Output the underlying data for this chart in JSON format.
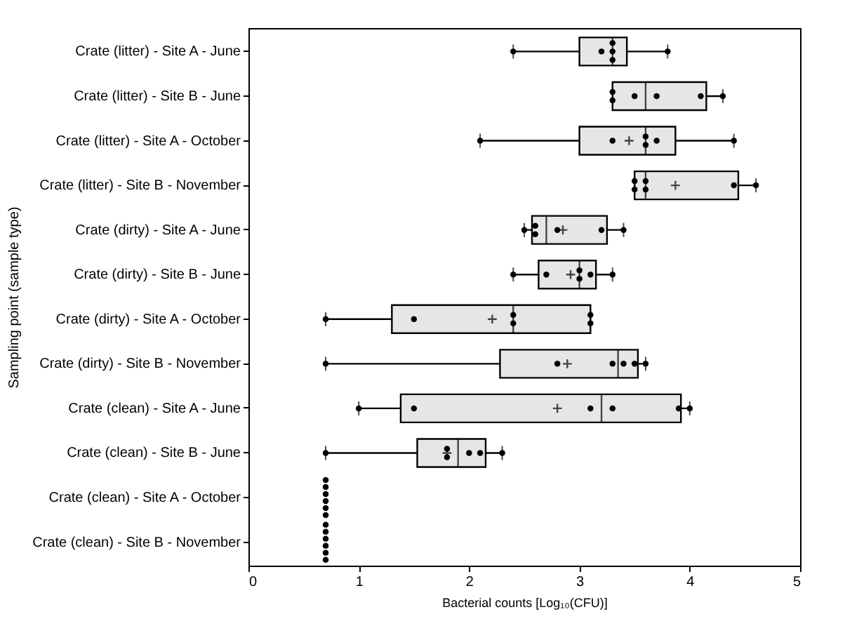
{
  "chart_data": {
    "type": "box",
    "orientation": "horizontal",
    "xlabel": "Bacterial counts [Log₁₀(CFU)]",
    "ylabel": "Sampling point (sample type)",
    "categories": [
      "Crate (litter) - Site A - June",
      "Crate (litter) - Site B - June",
      "Crate (litter) - Site A - October",
      "Crate (litter) - Site B - November",
      "Crate (dirty) - Site A - June",
      "Crate (dirty) - Site B - June",
      "Crate (dirty) - Site A - October",
      "Crate (dirty) - Site B - November",
      "Crate (clean) - Site A - June",
      "Crate (clean) - Site B - June",
      "Crate (clean) - Site A - October",
      "Crate (clean) - Site B - November"
    ],
    "boxes": [
      {
        "low": 2.4,
        "q1": 3.0,
        "median": 3.3,
        "q3": 3.43,
        "high": 3.8
      },
      {
        "low": 3.3,
        "q1": 3.3,
        "median": 3.6,
        "q3": 4.15,
        "high": 4.3
      },
      {
        "low": 2.1,
        "q1": 3.0,
        "median": 3.6,
        "q3": 3.87,
        "high": 4.4,
        "mean": 3.45
      },
      {
        "low": 3.5,
        "q1": 3.5,
        "median": 3.6,
        "q3": 4.44,
        "high": 4.6,
        "mean": 3.87
      },
      {
        "low": 2.5,
        "q1": 2.57,
        "median": 2.7,
        "q3": 3.25,
        "high": 3.4,
        "mean": 2.85
      },
      {
        "low": 2.4,
        "q1": 2.63,
        "median": 3.0,
        "q3": 3.15,
        "high": 3.3,
        "mean": 2.92
      },
      {
        "low": 0.7,
        "q1": 1.3,
        "median": 2.4,
        "q3": 3.1,
        "high": 3.1,
        "mean": 2.21
      },
      {
        "low": 0.7,
        "q1": 2.28,
        "median": 3.35,
        "q3": 3.53,
        "high": 3.6,
        "mean": 2.89
      },
      {
        "low": 1.0,
        "q1": 1.38,
        "median": 3.2,
        "q3": 3.92,
        "high": 4.0,
        "mean": 2.8
      },
      {
        "low": 0.7,
        "q1": 1.53,
        "median": 1.9,
        "q3": 2.15,
        "high": 2.3,
        "mean": 1.8
      },
      null,
      null
    ],
    "series": [
      {
        "type": "scatter",
        "color": "#000000",
        "marker": "circle",
        "x": [
          "Crate (litter) - Site A - June",
          "Crate (litter) - Site A - June",
          "Crate (litter) - Site A - June",
          "Crate (litter) - Site A - June",
          "Crate (litter) - Site A - June",
          "Crate (litter) - Site A - June",
          "Crate (litter) - Site B - June",
          "Crate (litter) - Site B - June",
          "Crate (litter) - Site B - June",
          "Crate (litter) - Site B - June",
          "Crate (litter) - Site B - June",
          "Crate (litter) - Site B - June",
          "Crate (litter) - Site A - October",
          "Crate (litter) - Site A - October",
          "Crate (litter) - Site A - October",
          "Crate (litter) - Site A - October",
          "Crate (litter) - Site A - October",
          "Crate (litter) - Site A - October",
          "Crate (litter) - Site B - November",
          "Crate (litter) - Site B - November",
          "Crate (litter) - Site B - November",
          "Crate (litter) - Site B - November",
          "Crate (litter) - Site B - November",
          "Crate (litter) - Site B - November",
          "Crate (dirty) - Site A - June",
          "Crate (dirty) - Site A - June",
          "Crate (dirty) - Site A - June",
          "Crate (dirty) - Site A - June",
          "Crate (dirty) - Site A - June",
          "Crate (dirty) - Site A - June",
          "Crate (dirty) - Site B - June",
          "Crate (dirty) - Site B - June",
          "Crate (dirty) - Site B - June",
          "Crate (dirty) - Site B - June",
          "Crate (dirty) - Site B - June",
          "Crate (dirty) - Site B - June",
          "Crate (dirty) - Site A - October",
          "Crate (dirty) - Site A - October",
          "Crate (dirty) - Site A - October",
          "Crate (dirty) - Site A - October",
          "Crate (dirty) - Site A - October",
          "Crate (dirty) - Site A - October",
          "Crate (dirty) - Site B - November",
          "Crate (dirty) - Site B - November",
          "Crate (dirty) - Site B - November",
          "Crate (dirty) - Site B - November",
          "Crate (dirty) - Site B - November",
          "Crate (dirty) - Site B - November",
          "Crate (clean) - Site A - June",
          "Crate (clean) - Site A - June",
          "Crate (clean) - Site A - June",
          "Crate (clean) - Site A - June",
          "Crate (clean) - Site A - June",
          "Crate (clean) - Site A - June",
          "Crate (clean) - Site B - June",
          "Crate (clean) - Site B - June",
          "Crate (clean) - Site B - June",
          "Crate (clean) - Site B - June",
          "Crate (clean) - Site B - June",
          "Crate (clean) - Site B - June",
          "Crate (clean) - Site A - October",
          "Crate (clean) - Site A - October",
          "Crate (clean) - Site A - October",
          "Crate (clean) - Site A - October",
          "Crate (clean) - Site A - October",
          "Crate (clean) - Site A - October",
          "Crate (clean) - Site B - November",
          "Crate (clean) - Site B - November",
          "Crate (clean) - Site B - November",
          "Crate (clean) - Site B - November",
          "Crate (clean) - Site B - November",
          "Crate (clean) - Site B - November"
        ],
        "values": [
          2.4,
          3.2,
          3.3,
          3.3,
          3.3,
          3.8,
          3.3,
          3.3,
          3.5,
          3.7,
          4.1,
          4.3,
          2.1,
          3.3,
          3.6,
          3.6,
          3.7,
          4.4,
          3.5,
          3.5,
          3.6,
          3.6,
          4.4,
          4.6,
          2.5,
          2.6,
          2.6,
          2.8,
          3.2,
          3.4,
          2.4,
          2.7,
          3.0,
          3.0,
          3.1,
          3.3,
          0.7,
          1.5,
          2.4,
          2.4,
          3.1,
          3.1,
          0.7,
          2.8,
          3.3,
          3.4,
          3.5,
          3.6,
          1.0,
          1.5,
          3.1,
          3.3,
          3.9,
          4.0,
          0.7,
          1.8,
          1.8,
          2.0,
          2.1,
          2.3,
          0.7,
          0.7,
          0.7,
          0.7,
          0.7,
          0.7,
          0.7,
          0.7,
          0.7,
          0.7,
          0.7,
          0.7
        ]
      }
    ],
    "color": "#e6e6e6",
    "xlim": [
      0,
      5
    ],
    "xticks": [
      0,
      1,
      2,
      3,
      4,
      5
    ],
    "grid": false
  }
}
